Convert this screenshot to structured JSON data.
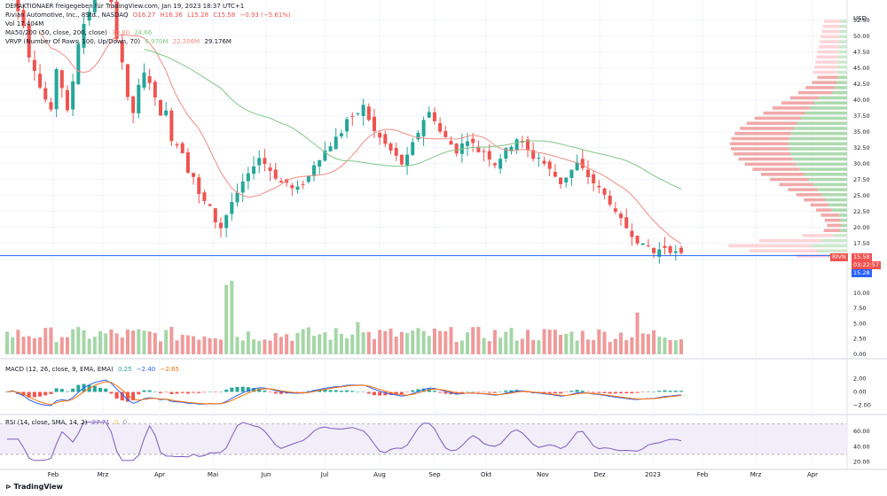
{
  "header": {
    "published_by": "DERAKTIONAER freigegeben für TradingView.com, Jan 19, 2023 18:37 UTC+1",
    "symbol": "Rivian Automotive, Inc., 8Std., NASDAQ",
    "ohlc": {
      "o": "O16.27",
      "h": "H16.36",
      "l": "L15.28",
      "c": "C15.58",
      "chg": "−0.93 (−5.61%)"
    },
    "vol": "Vol  17.404M",
    "ma": "MA50/200 (50, close, 200, close)",
    "ma50": "30.80",
    "ma200": "24.66",
    "vrvp": "VRVP (Number Of Rows, 100, Up/Down, 70)",
    "vrvp_a": "6.970M",
    "vrvp_b": "22.206M",
    "vrvp_c": "29.176M"
  },
  "macd_label": {
    "name": "MACD (12, 26, close, 9, EMA, EMA)",
    "hist": "0.25",
    "macd": "−2.40",
    "signal": "−2.65"
  },
  "rsi_label": {
    "name": "RSI (14, close, SMA, 14, 2)",
    "rsi": "27.71",
    "ma": "0",
    "extra": "0"
  },
  "currency": "USD",
  "price_badge": {
    "symbol": "RIVN",
    "price": "15.58",
    "countdown": "03:22:57",
    "low": "15.28"
  },
  "footer": {
    "brand": "TradingView"
  },
  "colors": {
    "up": "#26a69a",
    "down": "#ef5350",
    "ma50": "#f28b82",
    "ma200": "#81c784",
    "macd": "#2962ff",
    "signal": "#ff6d00",
    "rsi": "#7e57c2"
  },
  "chart_data": [
    {
      "type": "candlestick",
      "title": "Rivian Automotive, Inc., 8Std., NASDAQ",
      "x_labels": [
        "Feb",
        "Mrz",
        "Apr",
        "Mai",
        "Jun",
        "Jul",
        "Aug",
        "Sep",
        "Okt",
        "Nov",
        "Dez",
        "2023",
        "Feb",
        "Mrz",
        "Apr"
      ],
      "y_ticks": [
        "52.50",
        "50.00",
        "47.50",
        "45.00",
        "42.50",
        "40.00",
        "37.50",
        "35.00",
        "32.50",
        "30.00",
        "27.50",
        "25.00",
        "22.50",
        "20.00",
        "17.50",
        "15.00"
      ],
      "ylim": [
        14,
        54
      ],
      "close_path": [
        57,
        59,
        54,
        52,
        47,
        45,
        42,
        40,
        38,
        45,
        42,
        38,
        43,
        49,
        52,
        54,
        56,
        58,
        60,
        55,
        50,
        46,
        40,
        38,
        42,
        44,
        43,
        40,
        38,
        38,
        34,
        33,
        32,
        29,
        28,
        25,
        24,
        23,
        21,
        20,
        22,
        24,
        25,
        27,
        28,
        30,
        31,
        30,
        29,
        28,
        27,
        27,
        26,
        26,
        27,
        28,
        30,
        31,
        32,
        33,
        34,
        35,
        37,
        37,
        38,
        39,
        37,
        35,
        34,
        33,
        32,
        31,
        30,
        31,
        33,
        35,
        37,
        38,
        37,
        35,
        34,
        33,
        32,
        33,
        34,
        33,
        32,
        32,
        31,
        30,
        31,
        32,
        33,
        34,
        33,
        32,
        31,
        31,
        30,
        29,
        28,
        27,
        28,
        29,
        30,
        29,
        28,
        27,
        26,
        25,
        24,
        22,
        21,
        20,
        19,
        18,
        17,
        17,
        16,
        16.5,
        17,
        16.5,
        16,
        15.6
      ],
      "ma50": "30.80",
      "ma200": "24.66",
      "last_price": 15.58,
      "volume_profile_up_down": true
    },
    {
      "type": "bar",
      "title": "Volume",
      "y_ticks": [
        "10.00",
        "7.50",
        "5.00",
        "2.50",
        "0.00"
      ],
      "ylim": [
        0,
        13
      ],
      "unit": "M"
    },
    {
      "type": "bar",
      "title": "MACD (12, 26, close, 9, EMA, EMA)",
      "y_ticks": [
        "2.00",
        "0.00",
        "−2.00"
      ],
      "ylim": [
        -3,
        3
      ]
    },
    {
      "type": "line",
      "title": "RSI (14, close, SMA, 14, 2)",
      "y_ticks": [
        "60.00",
        "40.00",
        "20.00"
      ],
      "ylim": [
        15,
        75
      ],
      "bands": [
        30,
        70
      ]
    }
  ]
}
